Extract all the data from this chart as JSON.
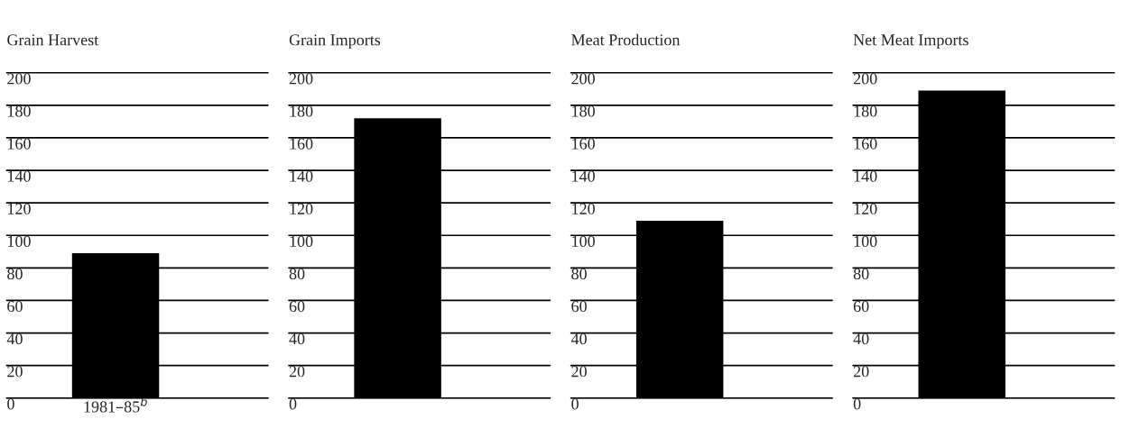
{
  "chart_data": [
    {
      "type": "bar",
      "title": "Grain Harvest",
      "categories": [
        "1981–85$^{b}$"
      ],
      "values": [
        89
      ],
      "color": "#000000",
      "ylim": [
        0,
        200
      ],
      "yticks": [
        0,
        20,
        40,
        60,
        80,
        100,
        120,
        140,
        160,
        180,
        200
      ],
      "grid": "y"
    },
    {
      "type": "bar",
      "title": "Grain Imports",
      "categories": [
        null
      ],
      "values": [
        172
      ],
      "color": "#000000",
      "ylim": [
        0,
        200
      ],
      "yticks": [
        0,
        20,
        40,
        60,
        80,
        100,
        120,
        140,
        160,
        180,
        200
      ],
      "grid": "y"
    },
    {
      "type": "bar",
      "title": "Meat Production",
      "categories": [
        null
      ],
      "values": [
        109
      ],
      "color": "#000000",
      "ylim": [
        0,
        200
      ],
      "yticks": [
        0,
        20,
        40,
        60,
        80,
        100,
        120,
        140,
        160,
        180,
        200
      ],
      "grid": "y"
    },
    {
      "type": "bar",
      "title": "Net Meat Imports",
      "categories": [
        null
      ],
      "values": [
        189
      ],
      "color": "#000000",
      "ylim": [
        0,
        200
      ],
      "yticks": [
        0,
        20,
        40,
        60,
        80,
        100,
        120,
        140,
        160,
        180,
        200
      ],
      "grid": "y"
    }
  ]
}
